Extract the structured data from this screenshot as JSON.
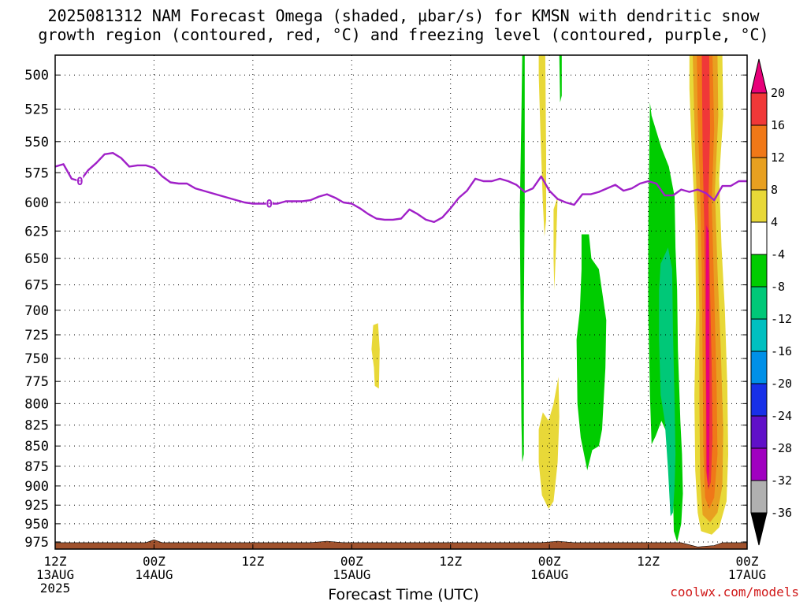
{
  "title_line1": "2025081312 NAM Forecast Omega (shaded, μbar/s) for KMSN with dendritic snow",
  "title_line2": "growth region (contoured, red, °C) and freezing level (contoured, purple, °C)",
  "xlabel": "Forecast Time (UTC)",
  "credit": "coolwx.com/models",
  "chart_data": {
    "type": "heatmap",
    "x_ticks": [
      {
        "hour": 0,
        "l1": "12Z",
        "l2": "13AUG",
        "l3": "2025"
      },
      {
        "hour": 12,
        "l1": "00Z",
        "l2": "14AUG",
        "l3": ""
      },
      {
        "hour": 24,
        "l1": "12Z",
        "l2": "",
        "l3": ""
      },
      {
        "hour": 36,
        "l1": "00Z",
        "l2": "15AUG",
        "l3": ""
      },
      {
        "hour": 48,
        "l1": "12Z",
        "l2": "",
        "l3": ""
      },
      {
        "hour": 60,
        "l1": "00Z",
        "l2": "16AUG",
        "l3": ""
      },
      {
        "hour": 72,
        "l1": "12Z",
        "l2": "",
        "l3": ""
      },
      {
        "hour": 84,
        "l1": "00Z",
        "l2": "17AUG",
        "l3": ""
      }
    ],
    "x_range_hours": [
      0,
      84
    ],
    "y_levels_mb": [
      500,
      525,
      550,
      575,
      600,
      625,
      650,
      675,
      700,
      725,
      750,
      775,
      800,
      825,
      850,
      875,
      900,
      925,
      950,
      975
    ],
    "y_range_mb": [
      486,
      985
    ],
    "y_scale": "log-pressure",
    "grid": true,
    "colorbar": {
      "labels": [
        "20",
        "16",
        "12",
        "8",
        "4",
        "-4",
        "-8",
        "-12",
        "-16",
        "-20",
        "-24",
        "-28",
        "-32",
        "-36"
      ],
      "colors": [
        "#e8007a",
        "#f03838",
        "#f07818",
        "#e8a020",
        "#e8d838",
        "#ffffff",
        "#00cc00",
        "#00c878",
        "#00c0c0",
        "#0090e8",
        "#1830e8",
        "#6010c8",
        "#a000c0",
        "#b0b0b0",
        "#000000"
      ]
    },
    "freezing_level": {
      "color": "#a020c8",
      "label": "0",
      "label_points": [
        [
          3,
          582
        ],
        [
          26,
          601
        ]
      ],
      "points": [
        [
          0,
          570
        ],
        [
          1,
          568
        ],
        [
          2,
          580
        ],
        [
          3,
          582
        ],
        [
          4,
          573
        ],
        [
          5,
          567
        ],
        [
          6,
          560
        ],
        [
          7,
          559
        ],
        [
          8,
          563
        ],
        [
          9,
          570
        ],
        [
          10,
          569
        ],
        [
          11,
          569
        ],
        [
          12,
          571
        ],
        [
          13,
          578
        ],
        [
          14,
          583
        ],
        [
          15,
          584
        ],
        [
          16,
          584
        ],
        [
          17,
          588
        ],
        [
          18,
          590
        ],
        [
          19,
          592
        ],
        [
          20,
          594
        ],
        [
          21,
          596
        ],
        [
          22,
          598
        ],
        [
          23,
          600
        ],
        [
          24,
          601
        ],
        [
          25,
          601
        ],
        [
          26,
          601
        ],
        [
          27,
          601
        ],
        [
          28,
          599
        ],
        [
          29,
          599
        ],
        [
          30,
          599
        ],
        [
          31,
          598
        ],
        [
          32,
          595
        ],
        [
          33,
          593
        ],
        [
          34,
          596
        ],
        [
          35,
          600
        ],
        [
          36,
          601
        ],
        [
          37,
          605
        ],
        [
          38,
          610
        ],
        [
          39,
          614
        ],
        [
          40,
          615
        ],
        [
          41,
          615
        ],
        [
          42,
          614
        ],
        [
          43,
          606
        ],
        [
          44,
          610
        ],
        [
          45,
          615
        ],
        [
          46,
          617
        ],
        [
          47,
          613
        ],
        [
          48,
          605
        ],
        [
          49,
          596
        ],
        [
          50,
          590
        ],
        [
          51,
          580
        ],
        [
          52,
          582
        ],
        [
          53,
          582
        ],
        [
          54,
          580
        ],
        [
          55,
          582
        ],
        [
          56,
          585
        ],
        [
          57,
          591
        ],
        [
          58,
          588
        ],
        [
          59,
          578
        ],
        [
          60,
          590
        ],
        [
          61,
          597
        ],
        [
          62,
          600
        ],
        [
          63,
          602
        ],
        [
          64,
          593
        ],
        [
          65,
          593
        ],
        [
          66,
          591
        ],
        [
          67,
          588
        ],
        [
          68,
          585
        ],
        [
          69,
          590
        ],
        [
          70,
          588
        ],
        [
          71,
          584
        ],
        [
          72,
          582
        ],
        [
          73,
          584
        ],
        [
          74,
          594
        ],
        [
          75,
          594
        ],
        [
          76,
          589
        ],
        [
          77,
          591
        ],
        [
          78,
          589
        ],
        [
          79,
          592
        ],
        [
          80,
          598
        ],
        [
          81,
          586
        ],
        [
          82,
          586
        ],
        [
          83,
          582
        ],
        [
          84,
          582
        ]
      ]
    },
    "terrain": {
      "color": "#a0522d",
      "points": [
        [
          0,
          976
        ],
        [
          11,
          976
        ],
        [
          12,
          972
        ],
        [
          13,
          976
        ],
        [
          31,
          976
        ],
        [
          33,
          974
        ],
        [
          35,
          976
        ],
        [
          59,
          976
        ],
        [
          61,
          974
        ],
        [
          63,
          976
        ],
        [
          76,
          976
        ],
        [
          78,
          982
        ],
        [
          80,
          980
        ],
        [
          81,
          976
        ],
        [
          84,
          976
        ]
      ]
    },
    "omega_regions": [
      {
        "value": 4,
        "color": "#e8d838",
        "points": [
          [
            38.6,
            715
          ],
          [
            39.2,
            713
          ],
          [
            39.4,
            740
          ],
          [
            39.3,
            783
          ],
          [
            38.8,
            780
          ],
          [
            38.7,
            760
          ],
          [
            38.4,
            740
          ]
        ]
      },
      {
        "value": 4,
        "color": "#e8d838",
        "points": [
          [
            58.7,
            486
          ],
          [
            59.5,
            486
          ],
          [
            59.6,
            560
          ],
          [
            59.6,
            615
          ],
          [
            59.4,
            630
          ],
          [
            59.2,
            600
          ],
          [
            58.9,
            540
          ],
          [
            58.7,
            500
          ]
        ]
      },
      {
        "value": 4,
        "color": "#e8d838",
        "points": [
          [
            60.5,
            606
          ],
          [
            61.0,
            595
          ],
          [
            60.8,
            640
          ],
          [
            60.6,
            680
          ],
          [
            60.5,
            650
          ]
        ]
      },
      {
        "value": 4,
        "color": "#e8d838",
        "points": [
          [
            58.7,
            830
          ],
          [
            59.2,
            810
          ],
          [
            59.9,
            820
          ],
          [
            60.5,
            800
          ],
          [
            61.1,
            770
          ],
          [
            61.2,
            815
          ],
          [
            61.0,
            870
          ],
          [
            60.7,
            900
          ],
          [
            60.5,
            920
          ],
          [
            59.9,
            930
          ],
          [
            59.1,
            912
          ],
          [
            58.7,
            870
          ]
        ]
      },
      {
        "value": -4,
        "color": "#00cc00",
        "points": [
          [
            56.7,
            486
          ],
          [
            57.0,
            486
          ],
          [
            57.0,
            600
          ],
          [
            56.9,
            700
          ],
          [
            56.9,
            800
          ],
          [
            56.9,
            860
          ],
          [
            56.7,
            870
          ],
          [
            56.6,
            820
          ],
          [
            56.5,
            700
          ],
          [
            56.4,
            610
          ],
          [
            56.6,
            530
          ]
        ]
      },
      {
        "value": -4,
        "color": "#00cc00",
        "points": [
          [
            61.2,
            486
          ],
          [
            61.5,
            486
          ],
          [
            61.5,
            515
          ],
          [
            61.3,
            520
          ]
        ]
      },
      {
        "value": -4,
        "color": "#00cc00",
        "points": [
          [
            63.9,
            628
          ],
          [
            64.8,
            628
          ],
          [
            65.1,
            650
          ],
          [
            66.0,
            660
          ],
          [
            66.9,
            710
          ],
          [
            66.8,
            760
          ],
          [
            66.4,
            830
          ],
          [
            66.0,
            850
          ],
          [
            65.2,
            855
          ],
          [
            64.6,
            880
          ],
          [
            63.8,
            840
          ],
          [
            63.4,
            800
          ],
          [
            63.3,
            730
          ],
          [
            63.7,
            700
          ],
          [
            63.9,
            660
          ]
        ]
      },
      {
        "value": -4,
        "color": "#00cc00",
        "points": [
          [
            72.4,
            530
          ],
          [
            73.6,
            555
          ],
          [
            74.5,
            570
          ],
          [
            75.2,
            595
          ],
          [
            75.3,
            640
          ],
          [
            75.5,
            680
          ],
          [
            75.6,
            740
          ],
          [
            75.9,
            820
          ],
          [
            76.1,
            860
          ],
          [
            76.2,
            910
          ],
          [
            76.0,
            950
          ],
          [
            75.5,
            975
          ],
          [
            75.1,
            960
          ],
          [
            75.0,
            905
          ],
          [
            74.9,
            850
          ],
          [
            74.3,
            835
          ],
          [
            73.6,
            820
          ],
          [
            72.9,
            838
          ],
          [
            72.4,
            848
          ],
          [
            72.2,
            790
          ],
          [
            72.0,
            700
          ],
          [
            72.0,
            630
          ],
          [
            72.1,
            570
          ],
          [
            72.2,
            520
          ]
        ]
      },
      {
        "value": -8,
        "color": "#00c878",
        "points": [
          [
            73.5,
            655
          ],
          [
            74.4,
            640
          ],
          [
            74.9,
            660
          ],
          [
            75.0,
            720
          ],
          [
            75.2,
            800
          ],
          [
            75.3,
            860
          ],
          [
            75.2,
            900
          ],
          [
            75.0,
            935
          ],
          [
            74.7,
            940
          ],
          [
            74.4,
            880
          ],
          [
            74.0,
            820
          ],
          [
            73.5,
            790
          ],
          [
            73.3,
            730
          ],
          [
            73.3,
            680
          ]
        ]
      },
      {
        "value": 4,
        "color": "#e8d838",
        "points": [
          [
            77.0,
            486
          ],
          [
            81.0,
            486
          ],
          [
            81.1,
            530
          ],
          [
            80.6,
            580
          ],
          [
            80.9,
            640
          ],
          [
            81.3,
            700
          ],
          [
            81.6,
            780
          ],
          [
            81.7,
            860
          ],
          [
            81.5,
            920
          ],
          [
            80.6,
            955
          ],
          [
            79.7,
            965
          ],
          [
            78.4,
            960
          ],
          [
            78.0,
            935
          ],
          [
            77.7,
            880
          ],
          [
            77.6,
            790
          ],
          [
            77.8,
            700
          ],
          [
            77.7,
            620
          ],
          [
            77.3,
            560
          ],
          [
            77.0,
            510
          ]
        ]
      },
      {
        "value": 8,
        "color": "#e8a020",
        "points": [
          [
            77.4,
            486
          ],
          [
            80.4,
            486
          ],
          [
            80.5,
            530
          ],
          [
            80.1,
            590
          ],
          [
            80.4,
            660
          ],
          [
            80.8,
            740
          ],
          [
            81.1,
            830
          ],
          [
            81.0,
            900
          ],
          [
            80.4,
            935
          ],
          [
            79.5,
            948
          ],
          [
            78.6,
            938
          ],
          [
            78.3,
            890
          ],
          [
            78.2,
            800
          ],
          [
            78.2,
            700
          ],
          [
            78.0,
            620
          ],
          [
            77.7,
            560
          ],
          [
            77.5,
            510
          ]
        ]
      },
      {
        "value": 12,
        "color": "#f07818",
        "points": [
          [
            77.9,
            486
          ],
          [
            79.8,
            486
          ],
          [
            80.0,
            540
          ],
          [
            79.7,
            600
          ],
          [
            80.0,
            680
          ],
          [
            80.3,
            780
          ],
          [
            80.4,
            860
          ],
          [
            80.0,
            915
          ],
          [
            79.4,
            930
          ],
          [
            78.9,
            915
          ],
          [
            78.7,
            860
          ],
          [
            78.6,
            760
          ],
          [
            78.5,
            660
          ],
          [
            78.3,
            590
          ],
          [
            78.0,
            530
          ]
        ]
      },
      {
        "value": 16,
        "color": "#f03838",
        "points": [
          [
            78.5,
            486
          ],
          [
            79.4,
            486
          ],
          [
            79.5,
            540
          ],
          [
            79.3,
            600
          ],
          [
            79.5,
            680
          ],
          [
            79.7,
            760
          ],
          [
            79.8,
            840
          ],
          [
            79.6,
            895
          ],
          [
            79.3,
            905
          ],
          [
            79.0,
            880
          ],
          [
            79.0,
            800
          ],
          [
            78.9,
            700
          ],
          [
            78.8,
            620
          ],
          [
            78.6,
            560
          ]
        ]
      },
      {
        "value": 20,
        "color": "#e8007a",
        "points": [
          [
            79.05,
            620
          ],
          [
            79.35,
            625
          ],
          [
            79.4,
            700
          ],
          [
            79.45,
            800
          ],
          [
            79.4,
            880
          ],
          [
            79.25,
            900
          ],
          [
            79.1,
            880
          ],
          [
            79.05,
            800
          ],
          [
            79.0,
            700
          ]
        ]
      }
    ]
  }
}
